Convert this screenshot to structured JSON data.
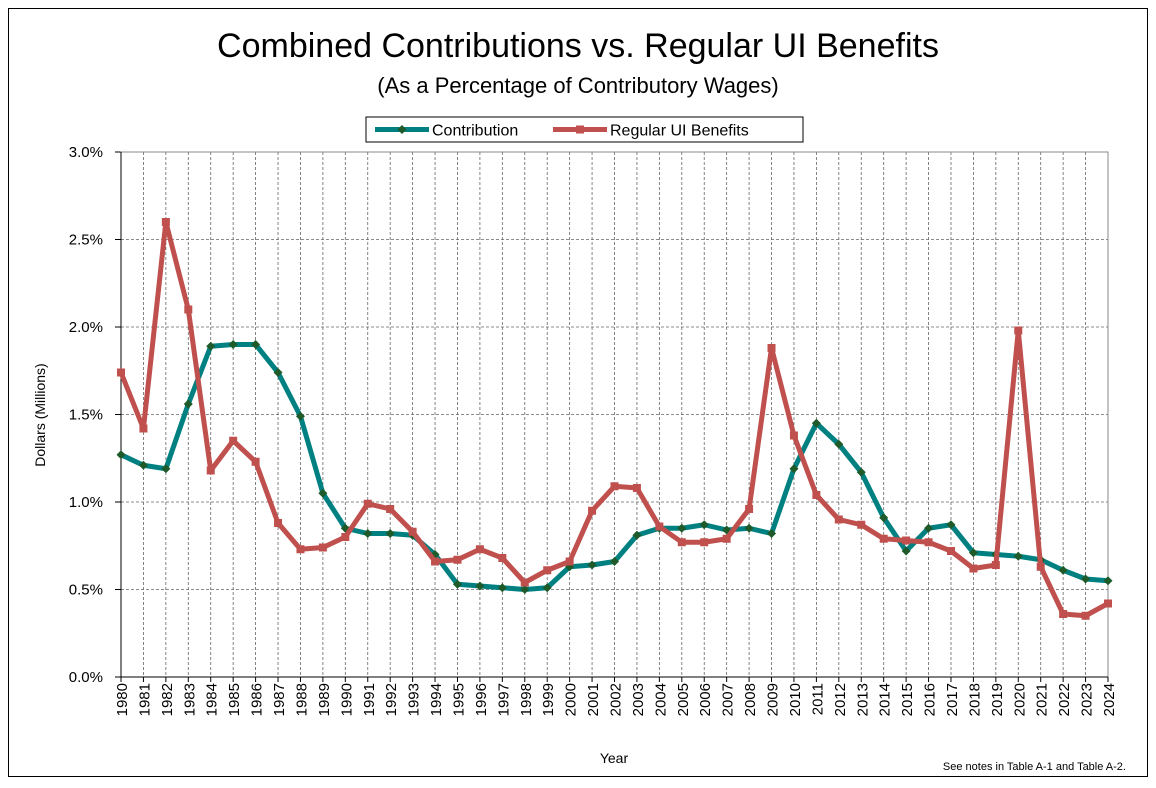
{
  "chart_data": {
    "type": "line",
    "title": "Combined Contributions vs. Regular UI Benefits",
    "subtitle": "(As a Percentage of Contributory Wages)",
    "y_label": "Dollars (Millions)",
    "x_label": "Year",
    "note": "See notes  in Table A-1 and Table A-2.",
    "categories": [
      "1980",
      "1981",
      "1982",
      "1983",
      "1984",
      "1985",
      "1986",
      "1987",
      "1988",
      "1989",
      "1990",
      "1991",
      "1992",
      "1993",
      "1994",
      "1995",
      "1996",
      "1997",
      "1998",
      "1999",
      "2000",
      "2001",
      "2002",
      "2003",
      "2004",
      "2005",
      "2006",
      "2007",
      "2008",
      "2009",
      "2010",
      "2011",
      "2012",
      "2013",
      "2014",
      "2015",
      "2016",
      "2017",
      "2018",
      "2019",
      "2020",
      "2021",
      "2022",
      "2023",
      "2024"
    ],
    "series": [
      {
        "name": "Contribution",
        "color": "#008080",
        "marker_color": "#1e5a2a",
        "marker": "diamond",
        "values": [
          1.27,
          1.21,
          1.19,
          1.56,
          1.89,
          1.9,
          1.9,
          1.74,
          1.49,
          1.05,
          0.85,
          0.82,
          0.82,
          0.81,
          0.7,
          0.53,
          0.52,
          0.51,
          0.5,
          0.51,
          0.63,
          0.64,
          0.66,
          0.81,
          0.85,
          0.85,
          0.87,
          0.84,
          0.85,
          0.82,
          1.19,
          1.45,
          1.33,
          1.17,
          0.91,
          0.72,
          0.85,
          0.87,
          0.71,
          0.7,
          0.69,
          0.67,
          0.61,
          0.56,
          0.55
        ]
      },
      {
        "name": "Regular UI Benefits",
        "color": "#c0504d",
        "marker_color": "#c0504d",
        "marker": "square",
        "values": [
          1.74,
          1.42,
          2.6,
          2.1,
          1.18,
          1.35,
          1.23,
          0.88,
          0.73,
          0.74,
          0.8,
          0.99,
          0.96,
          0.83,
          0.66,
          0.67,
          0.73,
          0.68,
          0.54,
          0.61,
          0.66,
          0.95,
          1.09,
          1.08,
          0.86,
          0.77,
          0.77,
          0.79,
          0.96,
          1.88,
          1.38,
          1.04,
          0.9,
          0.87,
          0.79,
          0.78,
          0.77,
          0.72,
          0.62,
          0.64,
          1.98,
          0.63,
          0.36,
          0.35,
          0.42
        ]
      }
    ],
    "ylim": [
      0,
      3
    ],
    "yticks": [
      {
        "value": 0,
        "label": "0.0%"
      },
      {
        "value": 0.5,
        "label": "0.5%"
      },
      {
        "value": 1,
        "label": "1.0%"
      },
      {
        "value": 1.5,
        "label": "1.5%"
      },
      {
        "value": 2,
        "label": "2.0%"
      },
      {
        "value": 2.5,
        "label": "2.5%"
      },
      {
        "value": 3,
        "label": "3.0%"
      }
    ],
    "grid": true,
    "legend": "top"
  }
}
